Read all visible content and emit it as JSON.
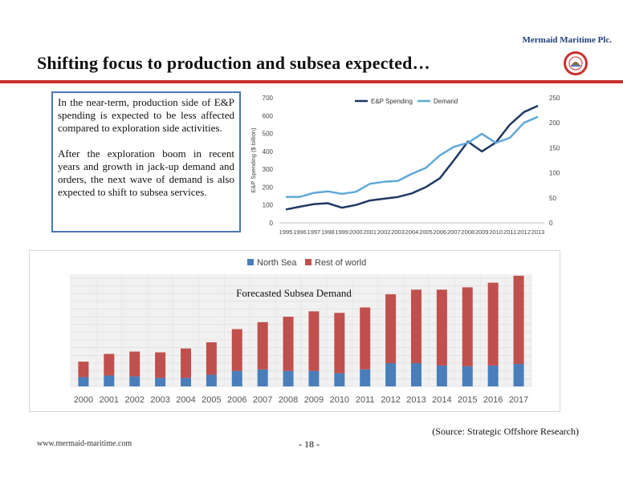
{
  "header": {
    "company": "Mermaid Maritime Plc.",
    "title": "Shifting focus to production and subsea expected…"
  },
  "textbox": {
    "para1": "In the near-term, production side of E&P spending is expected to be less affected compared to exploration side activities.",
    "para2": "After the exploration boom in recent years and growth in jack-up demand and orders, the next wave of demand is also expected to shift to subsea services."
  },
  "footer": {
    "source": "(Source: Strategic Offshore Research)",
    "url": "www.mermaid-maritime.com",
    "page": "- 18 -"
  },
  "colors": {
    "accent_red": "#c8302e",
    "box_border": "#4a76b8",
    "ep_spending": "#1f3864",
    "demand": "#5fa8d8",
    "north_sea": "#4a7ebb",
    "rest_of_world": "#c0504d"
  },
  "chart_data": [
    {
      "type": "line",
      "x": [
        "1995",
        "1996",
        "1997",
        "1998",
        "1999",
        "2000",
        "2001",
        "2002",
        "2003",
        "2004",
        "2005",
        "2006",
        "2007",
        "2008",
        "2009",
        "2010",
        "2011",
        "2012",
        "2013"
      ],
      "series": [
        {
          "name": "E&P Spending",
          "axis": "left",
          "values": [
            75,
            90,
            105,
            110,
            85,
            100,
            125,
            135,
            145,
            165,
            200,
            250,
            350,
            455,
            400,
            450,
            550,
            620,
            655
          ]
        },
        {
          "name": "Demand",
          "axis": "right",
          "values": [
            52,
            52,
            60,
            63,
            58,
            62,
            78,
            82,
            84,
            98,
            110,
            135,
            152,
            160,
            178,
            160,
            170,
            200,
            212
          ]
        }
      ],
      "ylabel": "E&P Spending ($ billion)",
      "ylim": [
        0,
        700
      ],
      "yticks": [
        "700",
        "600",
        "500",
        "400",
        "300",
        "200",
        "100",
        "0"
      ],
      "y2lim": [
        0,
        250
      ],
      "y2ticks": [
        "250",
        "200",
        "150",
        "100",
        "50",
        "0"
      ],
      "legend": "top-center",
      "grid": false
    },
    {
      "type": "bar",
      "title": "Forecasted Subsea Demand",
      "categories": [
        "2000",
        "2001",
        "2002",
        "2003",
        "2004",
        "2005",
        "2006",
        "2007",
        "2008",
        "2009",
        "2010",
        "2011",
        "2012",
        "2013",
        "2014",
        "2015",
        "2016",
        "2017"
      ],
      "series": [
        {
          "name": "North Sea",
          "values": [
            12,
            14,
            13,
            11,
            11,
            15,
            20,
            22,
            20,
            20,
            17,
            22,
            30,
            30,
            27,
            26,
            27,
            29
          ]
        },
        {
          "name": "Rest of world",
          "values": [
            20,
            28,
            32,
            33,
            38,
            42,
            54,
            61,
            70,
            77,
            78,
            80,
            89,
            95,
            98,
            102,
            107,
            114
          ]
        }
      ],
      "stacked": true,
      "ylim": [
        0,
        145
      ],
      "legend": "top-center",
      "grid": true
    }
  ]
}
